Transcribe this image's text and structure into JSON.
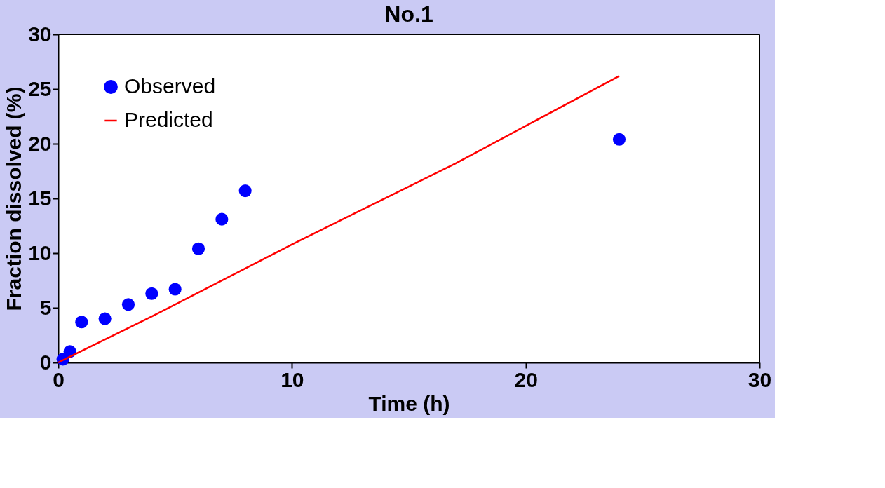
{
  "chart_data": {
    "type": "scatter",
    "title": "No.1",
    "xlabel": "Time (h)",
    "ylabel": "Fraction dissolved (%)",
    "xlim": [
      0,
      30
    ],
    "xticks": [
      0,
      10,
      20,
      30
    ],
    "ylim": [
      0,
      30
    ],
    "yticks": [
      0,
      5,
      10,
      15,
      20,
      25,
      30
    ],
    "grid": false,
    "legend": "top left",
    "series": [
      {
        "name": "Observed",
        "marker": "circle",
        "color": "#0000ff",
        "x": [
          0.2,
          0.5,
          1,
          2,
          3,
          4,
          5,
          6,
          7,
          8,
          24
        ],
        "values": [
          0.3,
          1.0,
          3.7,
          4.0,
          5.3,
          6.3,
          6.7,
          10.4,
          13.1,
          15.7,
          20.4
        ]
      },
      {
        "name": "Predicted",
        "type": "line",
        "color": "#ff0000",
        "line_style": "solid",
        "x": [
          0,
          4,
          10,
          17,
          24
        ],
        "values": [
          0,
          4.2,
          10.8,
          18.2,
          26.2
        ]
      }
    ]
  }
}
